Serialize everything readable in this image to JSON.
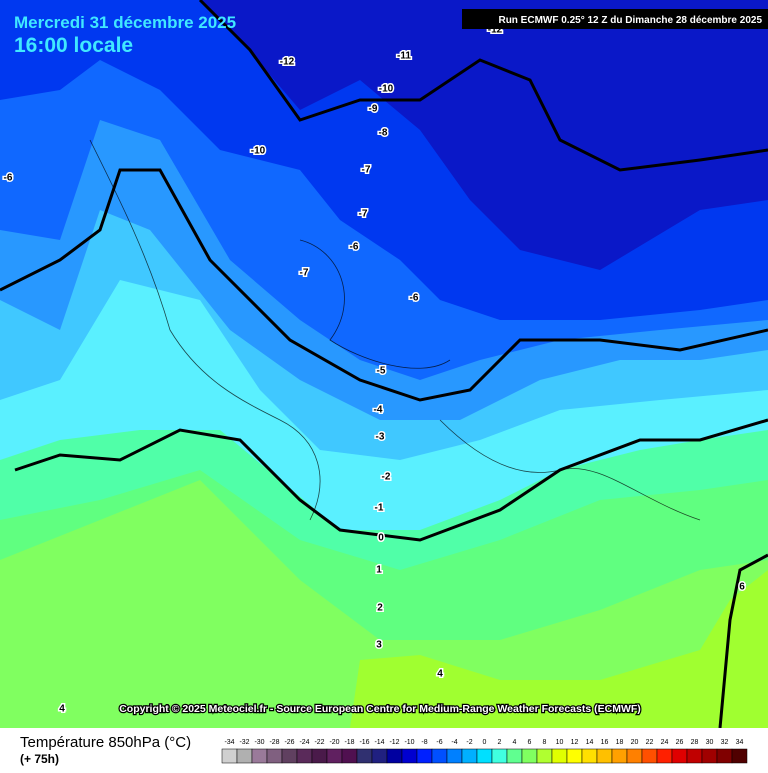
{
  "header": {
    "date": "Mercredi 31 décembre 2025",
    "time": "16:00 locale",
    "run": "Run ECMWF 0.25° 12 Z du Dimanche 28 décembre 2025"
  },
  "map": {
    "contour_labels": [
      -12,
      -12,
      -11,
      -10,
      -9,
      -8,
      -10,
      -7,
      -6,
      -7,
      -6,
      -7,
      -6,
      -5,
      -4,
      -3,
      -2,
      -1,
      0,
      1,
      2,
      3,
      4,
      4,
      6
    ]
  },
  "copyright": "Copyright © 2025 Meteociel.fr - Source European Centre for Medium-Range Weather Forecasts (ECMWF)",
  "legend": {
    "title": "Température 850hPa (°C)",
    "lead": "(+ 75h)",
    "ticks": [
      -34,
      -32,
      -30,
      -28,
      -26,
      -24,
      -22,
      -20,
      -18,
      -16,
      -14,
      -12,
      -10,
      -8,
      -6,
      -4,
      -2,
      0,
      2,
      4,
      6,
      8,
      10,
      12,
      14,
      16,
      18,
      20,
      22,
      24,
      26,
      28,
      30,
      32,
      34
    ],
    "colors": [
      "#d0d0d0",
      "#b0b0b0",
      "#9a7a9a",
      "#806080",
      "#604060",
      "#5a2a5a",
      "#4a1a4a",
      "#602060",
      "#501050",
      "#303070",
      "#202080",
      "#0000a0",
      "#0000d0",
      "#0020ff",
      "#0050ff",
      "#0080ff",
      "#00b0ff",
      "#00e0ff",
      "#40ffe0",
      "#60ff90",
      "#80ff60",
      "#b0ff30",
      "#e0ff00",
      "#ffff00",
      "#ffe000",
      "#ffc000",
      "#ffa000",
      "#ff8000",
      "#ff5000",
      "#ff2000",
      "#e00000",
      "#c00000",
      "#a00000",
      "#800000",
      "#500000"
    ]
  }
}
